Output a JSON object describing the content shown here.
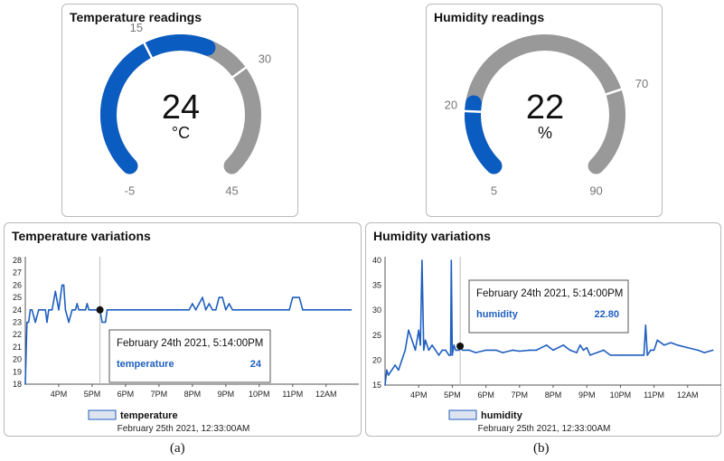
{
  "temp_gauge": {
    "title": "Temperature readings",
    "value": 24,
    "unit": "°C",
    "min": -5,
    "max": 45,
    "low_threshold": 15,
    "high_threshold": 30,
    "labels": {
      "min": "-5",
      "low": "15",
      "high": "30",
      "max": "45"
    },
    "fill_color": "#0b5cc0",
    "track_color": "#999999"
  },
  "hum_gauge": {
    "title": "Humidity readings",
    "value": 22,
    "unit": "%",
    "min": 5,
    "max": 90,
    "low_threshold": 20,
    "high_threshold": 70,
    "labels": {
      "min": "5",
      "low": "20",
      "high": "70",
      "max": "90"
    },
    "fill_color": "#0b5cc0",
    "track_color": "#999999"
  },
  "temp_chart": {
    "title": "Temperature variations",
    "tooltip": {
      "date": "February 24th 2021, 5:14:00PM",
      "series": "temperature",
      "value": "24"
    },
    "legend": "temperature",
    "timestamp": "February 25th 2021, 12:33:00AM"
  },
  "hum_chart": {
    "title": "Humidity variations",
    "tooltip": {
      "date": "February 24th 2021, 5:14:00PM",
      "series": "humidity",
      "value": "22.80"
    },
    "legend": "humidity",
    "timestamp": "February 25th 2021, 12:33:00AM"
  },
  "captions": {
    "a": "(a)",
    "b": "(b)"
  },
  "chart_data": [
    {
      "type": "line",
      "series": [
        {
          "name": "temperature",
          "x": [
            3.0,
            3.05,
            3.1,
            3.15,
            3.2,
            3.3,
            3.4,
            3.5,
            3.6,
            3.65,
            3.7,
            3.75,
            3.8,
            3.9,
            4.0,
            4.05,
            4.1,
            4.15,
            4.2,
            4.3,
            4.4,
            4.45,
            4.5,
            4.55,
            4.6,
            4.7,
            4.8,
            4.85,
            4.9,
            4.95,
            5.0,
            5.1,
            5.2,
            5.233,
            5.3,
            5.4,
            5.45,
            5.5,
            5.6,
            5.7,
            6.0,
            6.5,
            7.0,
            7.5,
            7.9,
            8.0,
            8.1,
            8.2,
            8.3,
            8.4,
            8.5,
            8.6,
            8.7,
            8.8,
            8.9,
            9.0,
            9.1,
            9.2,
            9.3,
            9.5,
            10.0,
            10.5,
            10.9,
            11.0,
            11.1,
            11.2,
            11.3,
            11.5,
            12.0,
            12.5,
            12.75
          ],
          "y": [
            18,
            23,
            23,
            24,
            24,
            23,
            24,
            24,
            24,
            23,
            24,
            24,
            24,
            25.5,
            24,
            25,
            26,
            26,
            24,
            23,
            24,
            24,
            24,
            24.5,
            24,
            24,
            24,
            24.5,
            24,
            24,
            24,
            24,
            24,
            24,
            23,
            23,
            24,
            24,
            24,
            24,
            24,
            24,
            24,
            24,
            24,
            24.5,
            24,
            24.5,
            25,
            24,
            24.5,
            24,
            24,
            25,
            25,
            24,
            24.5,
            24,
            24,
            24,
            24,
            24,
            24,
            25,
            25,
            25,
            24,
            24,
            24,
            24,
            24
          ]
        }
      ],
      "x_ticks": [
        "4PM",
        "5PM",
        "6PM",
        "7PM",
        "8PM",
        "9PM",
        "10PM",
        "11PM",
        "12AM"
      ],
      "y_ticks": [
        18,
        19,
        20,
        21,
        22,
        23,
        24,
        25,
        26,
        27,
        28
      ],
      "ylim": [
        18,
        28
      ],
      "grid": false,
      "legend": "bottom-center"
    },
    {
      "type": "line",
      "series": [
        {
          "name": "humidity",
          "x": [
            3.0,
            3.05,
            3.1,
            3.2,
            3.3,
            3.4,
            3.5,
            3.6,
            3.7,
            3.8,
            3.9,
            4.0,
            4.05,
            4.1,
            4.15,
            4.2,
            4.3,
            4.4,
            4.5,
            4.6,
            4.7,
            4.8,
            4.9,
            4.95,
            4.97,
            5.0,
            5.05,
            5.1,
            5.2,
            5.233,
            5.3,
            5.5,
            5.7,
            6.0,
            6.3,
            6.5,
            6.8,
            7.0,
            7.3,
            7.5,
            7.8,
            8.0,
            8.3,
            8.5,
            8.7,
            8.8,
            8.9,
            9.0,
            9.1,
            9.3,
            9.5,
            9.7,
            10.0,
            10.3,
            10.5,
            10.7,
            10.75,
            10.8,
            10.9,
            11.0,
            11.1,
            11.3,
            11.5,
            11.7,
            12.0,
            12.3,
            12.5,
            12.75
          ],
          "y": [
            15,
            18,
            17,
            18,
            19,
            18,
            20,
            22,
            26,
            24,
            22,
            26,
            23,
            40,
            22,
            24,
            22,
            23,
            22,
            21,
            22,
            22,
            21,
            21,
            40,
            21,
            23,
            22,
            22,
            22.8,
            22,
            22,
            21.5,
            22,
            22,
            21.5,
            22,
            21.8,
            22,
            22,
            23,
            22,
            23,
            22,
            21.5,
            23,
            22,
            22.5,
            21,
            21.5,
            22,
            21,
            21,
            21,
            21,
            21,
            27,
            21,
            22,
            22,
            24,
            23,
            23.5,
            23,
            22.5,
            22,
            21.5,
            22
          ]
        }
      ],
      "x_ticks": [
        "4PM",
        "5PM",
        "6PM",
        "7PM",
        "8PM",
        "9PM",
        "10PM",
        "11PM",
        "12AM"
      ],
      "y_ticks": [
        15,
        20,
        25,
        30,
        35,
        40
      ],
      "ylim": [
        15,
        40
      ],
      "grid": false,
      "legend": "bottom-center"
    }
  ]
}
